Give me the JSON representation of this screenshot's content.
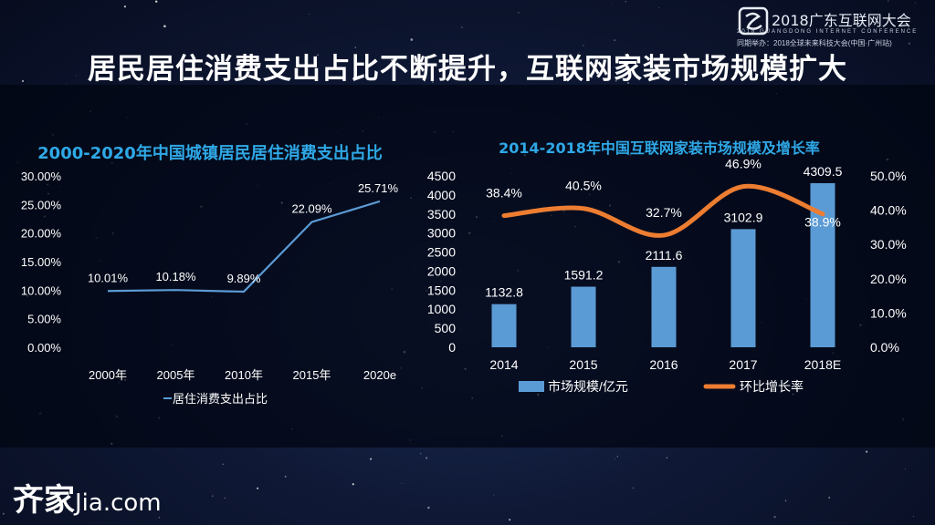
{
  "slide": {
    "title": "居民居住消费支出占比不断提升，互联网家装市场规模扩大"
  },
  "header": {
    "conference_name": "2018广东互联网大会",
    "conference_en": "2018 GUANGDONG INTERNET CONFERENCE",
    "conference_sub": "同期举办：2018全球未来科技大会(中国·广州站)"
  },
  "footer": {
    "brand_cn": "齐家",
    "brand_en": "Jia.com"
  },
  "colors": {
    "bar": "#5b9bd5",
    "line_growth": "#ed7d31",
    "line_share": "#5b9bd5",
    "title_accent": "#2fa8e6",
    "text": "#ffffff"
  },
  "chart_data": [
    {
      "type": "line",
      "title": "2000-2020年中国城镇居民居住消费支出占比",
      "categories": [
        "2000年",
        "2005年",
        "2010年",
        "2015年",
        "2020e"
      ],
      "series": [
        {
          "name": "居住消费支出占比",
          "values": [
            10.01,
            10.18,
            9.89,
            22.09,
            25.71
          ],
          "labels": [
            "10.01%",
            "10.18%",
            "9.89%",
            "22.09%",
            "25.71%"
          ]
        }
      ],
      "ylim": [
        0,
        30
      ],
      "yticks": [
        "0.00%",
        "5.00%",
        "10.00%",
        "15.00%",
        "20.00%",
        "25.00%",
        "30.00%"
      ],
      "grid": false,
      "legend": "bottom"
    },
    {
      "type": "bar",
      "title": "2014-2018年中国互联网家装市场规模及增长率",
      "categories": [
        "2014",
        "2015",
        "2016",
        "2017",
        "2018E"
      ],
      "series": [
        {
          "name": "市场规模/亿元",
          "type": "bar",
          "axis": "left",
          "values": [
            1132.8,
            1591.2,
            2111.6,
            3102.9,
            4309.5
          ],
          "labels": [
            "1132.8",
            "1591.2",
            "2111.6",
            "3102.9",
            "4309.5"
          ]
        },
        {
          "name": "环比增长率",
          "type": "line",
          "axis": "right",
          "values": [
            38.4,
            40.5,
            32.7,
            46.9,
            38.9
          ],
          "labels": [
            "38.4%",
            "40.5%",
            "32.7%",
            "46.9%",
            "38.9%"
          ]
        }
      ],
      "ylim_left": [
        0,
        4500
      ],
      "yticks_left": [
        "0",
        "500",
        "1000",
        "1500",
        "2000",
        "2500",
        "3000",
        "3500",
        "4000",
        "4500"
      ],
      "ylim_right": [
        0,
        50
      ],
      "yticks_right": [
        "0.0%",
        "10.0%",
        "20.0%",
        "30.0%",
        "40.0%",
        "50.0%"
      ],
      "grid": false,
      "legend": "bottom"
    }
  ]
}
